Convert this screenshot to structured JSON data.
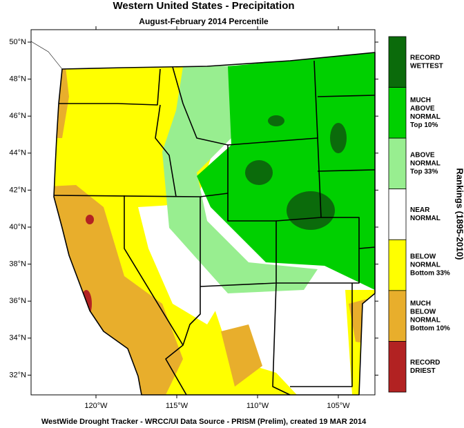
{
  "header": {
    "title": "Western United States - Precipitation",
    "subtitle": "August-February 2014 Percentile"
  },
  "map": {
    "lat_ticks": [
      {
        "value": 50,
        "label": "50°N"
      },
      {
        "value": 48,
        "label": "48°N"
      },
      {
        "value": 46,
        "label": "46°N"
      },
      {
        "value": 44,
        "label": "44°N"
      },
      {
        "value": 42,
        "label": "42°N"
      },
      {
        "value": 40,
        "label": "40°N"
      },
      {
        "value": 38,
        "label": "38°N"
      },
      {
        "value": 36,
        "label": "36°N"
      },
      {
        "value": 34,
        "label": "34°N"
      },
      {
        "value": 32,
        "label": "32°N"
      }
    ],
    "lon_ticks": [
      {
        "value": -120,
        "label": "120°W"
      },
      {
        "value": -115,
        "label": "115°W"
      },
      {
        "value": -110,
        "label": "110°W"
      },
      {
        "value": -105,
        "label": "105°W"
      }
    ]
  },
  "legend": {
    "title": "Rankings (1895-2010)",
    "items": [
      {
        "lines": [
          "RECORD",
          "WETTEST"
        ],
        "color": "#0b6b0b"
      },
      {
        "lines": [
          "MUCH",
          "ABOVE",
          "NORMAL",
          "Top 10%"
        ],
        "color": "#00d000"
      },
      {
        "lines": [
          "ABOVE",
          "NORMAL",
          "Top 33%"
        ],
        "color": "#98ee90"
      },
      {
        "lines": [
          "NEAR",
          "NORMAL"
        ],
        "color": "#ffffff"
      },
      {
        "lines": [
          "BELOW",
          "NORMAL",
          "Bottom 33%"
        ],
        "color": "#ffff00"
      },
      {
        "lines": [
          "MUCH",
          "BELOW",
          "NORMAL",
          "Bottom 10%"
        ],
        "color": "#e8ae2c"
      },
      {
        "lines": [
          "RECORD",
          "DRIEST"
        ],
        "color": "#b22222"
      }
    ]
  },
  "footer": "WestWide Drought Tracker - WRCC/UI  Data Source - PRISM (Prelim), created 19 MAR 2014"
}
